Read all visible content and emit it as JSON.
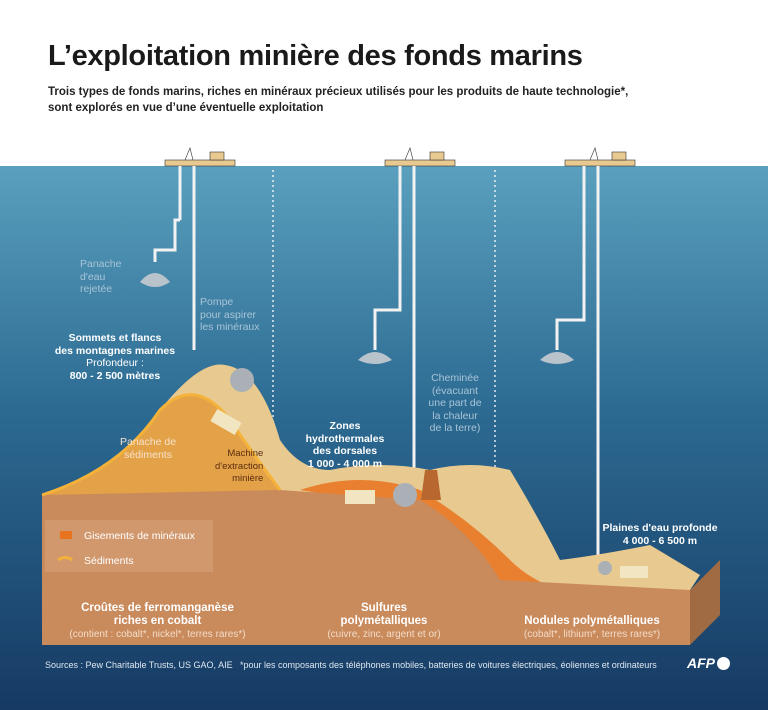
{
  "title": "L’exploitation minière des fonds marins",
  "subtitle": [
    "Trois types de fonds marins, riches en minéraux précieux utilisés pour les produits de haute technologie*,",
    "sont explorés en vue d’une éventuelle exploitation"
  ],
  "labels": {
    "plume_water": [
      "Panache",
      "d'eau",
      "rejetée"
    ],
    "pump": [
      "Pompe",
      "pour aspirer",
      "les minéraux"
    ],
    "seamount_title": [
      "Sommets et flancs",
      "des montagnes marines"
    ],
    "seamount_depth": [
      "Profondeur :",
      "800 - 2 500 mètres"
    ],
    "sediment_plume": [
      "Panache de",
      "sédiments"
    ],
    "machine": [
      "Machine",
      "d'extraction",
      "minière"
    ],
    "hydro_title": [
      "Zones hydrothermales",
      "des dorsales"
    ],
    "hydro_depth": "1 000 - 4 000 m",
    "chimney": [
      "Cheminée",
      "(évacuant",
      "une part de",
      "la chaleur",
      "de la terre)"
    ],
    "plains_title": "Plaines d'eau profonde",
    "plains_depth": "4 000 - 6 500 m"
  },
  "legend": [
    {
      "label": "Gisements de minéraux",
      "color": "#e8731e"
    },
    {
      "label": "Sédiments",
      "color": "#f5b23a"
    }
  ],
  "sections": [
    {
      "title": [
        "Croûtes de ferromanganèse",
        "riches en cobalt"
      ],
      "detail": "(contient : cobalt*, nickel*, terres rares*)"
    },
    {
      "title": [
        "Sulfures",
        "polymétalliques"
      ],
      "detail": "(cuivre, zinc, argent et or)"
    },
    {
      "title": [
        "Nodules polymétalliques"
      ],
      "detail": "(cobalt*, lithium*, terres rares*)"
    }
  ],
  "footer": {
    "sources": "Sources : Pew Charitable Trusts, US GAO, AIE",
    "note": "*pour les composants des téléphones mobiles, batteries de voitures électriques, éoliennes et ordinateurs",
    "logo": "AFP"
  },
  "colors": {
    "ocean_top": "#5aa0be",
    "ocean_bottom": "#163a63",
    "seabed": "#c98a5c",
    "sediment": "#e8c98f"
  }
}
